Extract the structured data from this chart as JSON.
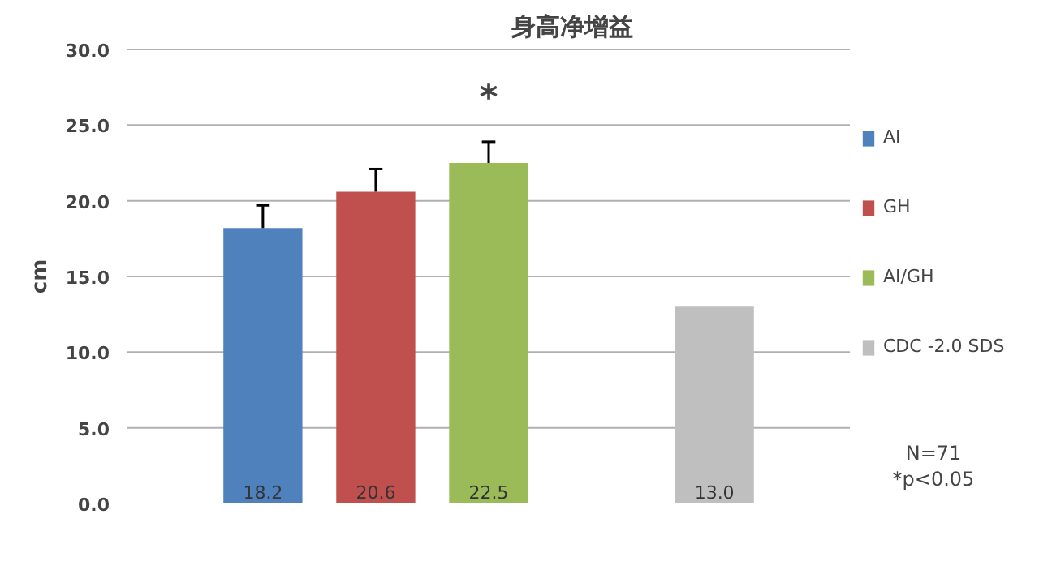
{
  "chart_data": {
    "type": "bar",
    "title": "身高净增益",
    "ylabel": "cm",
    "categories": [
      null,
      null,
      null,
      null,
      null
    ],
    "series": [
      {
        "name": "AI",
        "color": "#4f81bd",
        "values": [
          18.2,
          null,
          null,
          null,
          null
        ],
        "value_labels": [
          "18.2",
          null,
          null,
          null,
          null
        ],
        "errors": [
          [
            18.2,
            19.7
          ],
          null,
          null,
          null,
          null
        ]
      },
      {
        "name": "GH",
        "color": "#c0504d",
        "values": [
          null,
          20.6,
          null,
          null,
          null
        ],
        "value_labels": [
          null,
          "20.6",
          null,
          null,
          null
        ],
        "errors": [
          null,
          [
            20.6,
            22.1
          ],
          null,
          null,
          null
        ]
      },
      {
        "name": "AI/GH",
        "color": "#9bbb59",
        "values": [
          null,
          null,
          22.5,
          null,
          null
        ],
        "value_labels": [
          null,
          null,
          "22.5",
          null,
          null
        ],
        "errors": [
          null,
          null,
          [
            22.5,
            23.9
          ],
          null,
          null
        ]
      },
      {
        "name": "CDC -2.0 SDS",
        "color": "#bfbfbf",
        "values": [
          null,
          null,
          null,
          null,
          13.0
        ],
        "value_labels": [
          null,
          null,
          null,
          null,
          "13.0"
        ]
      }
    ],
    "ylim": [
      0,
      30
    ],
    "yticks": [
      {
        "value": 0,
        "label": "0.0"
      },
      {
        "value": 5,
        "label": "5.0"
      },
      {
        "value": 10,
        "label": "10.0"
      },
      {
        "value": 15,
        "label": "15.0"
      },
      {
        "value": 20,
        "label": "20.0"
      },
      {
        "value": 25,
        "label": "25.0"
      },
      {
        "value": 30,
        "label": "30.0"
      }
    ],
    "grid": "y",
    "legend": "right",
    "annotations": [
      "*",
      "N=71",
      "*p<0.05"
    ]
  }
}
